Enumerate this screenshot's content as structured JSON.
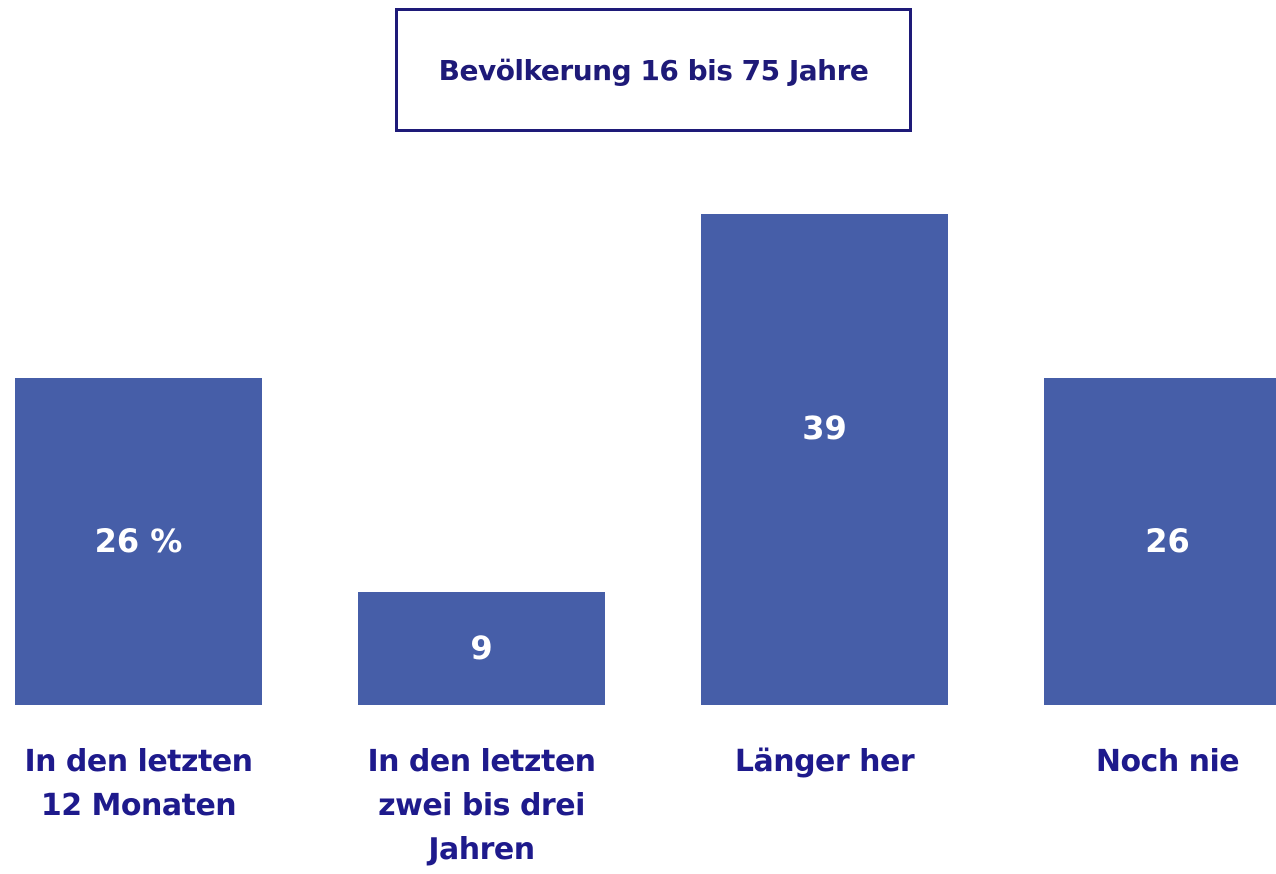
{
  "chart_data": {
    "type": "bar",
    "title": "Bevölkerung 16 bis 75 Jahre",
    "categories": [
      "In den letzten 12 Monaten",
      "In den letzten zwei bis drei Jahren",
      "Länger her",
      "Noch nie"
    ],
    "values": [
      26,
      9,
      39,
      26
    ],
    "value_labels": [
      "26 %",
      "9",
      "39",
      "26"
    ],
    "color": "#465ea8"
  }
}
